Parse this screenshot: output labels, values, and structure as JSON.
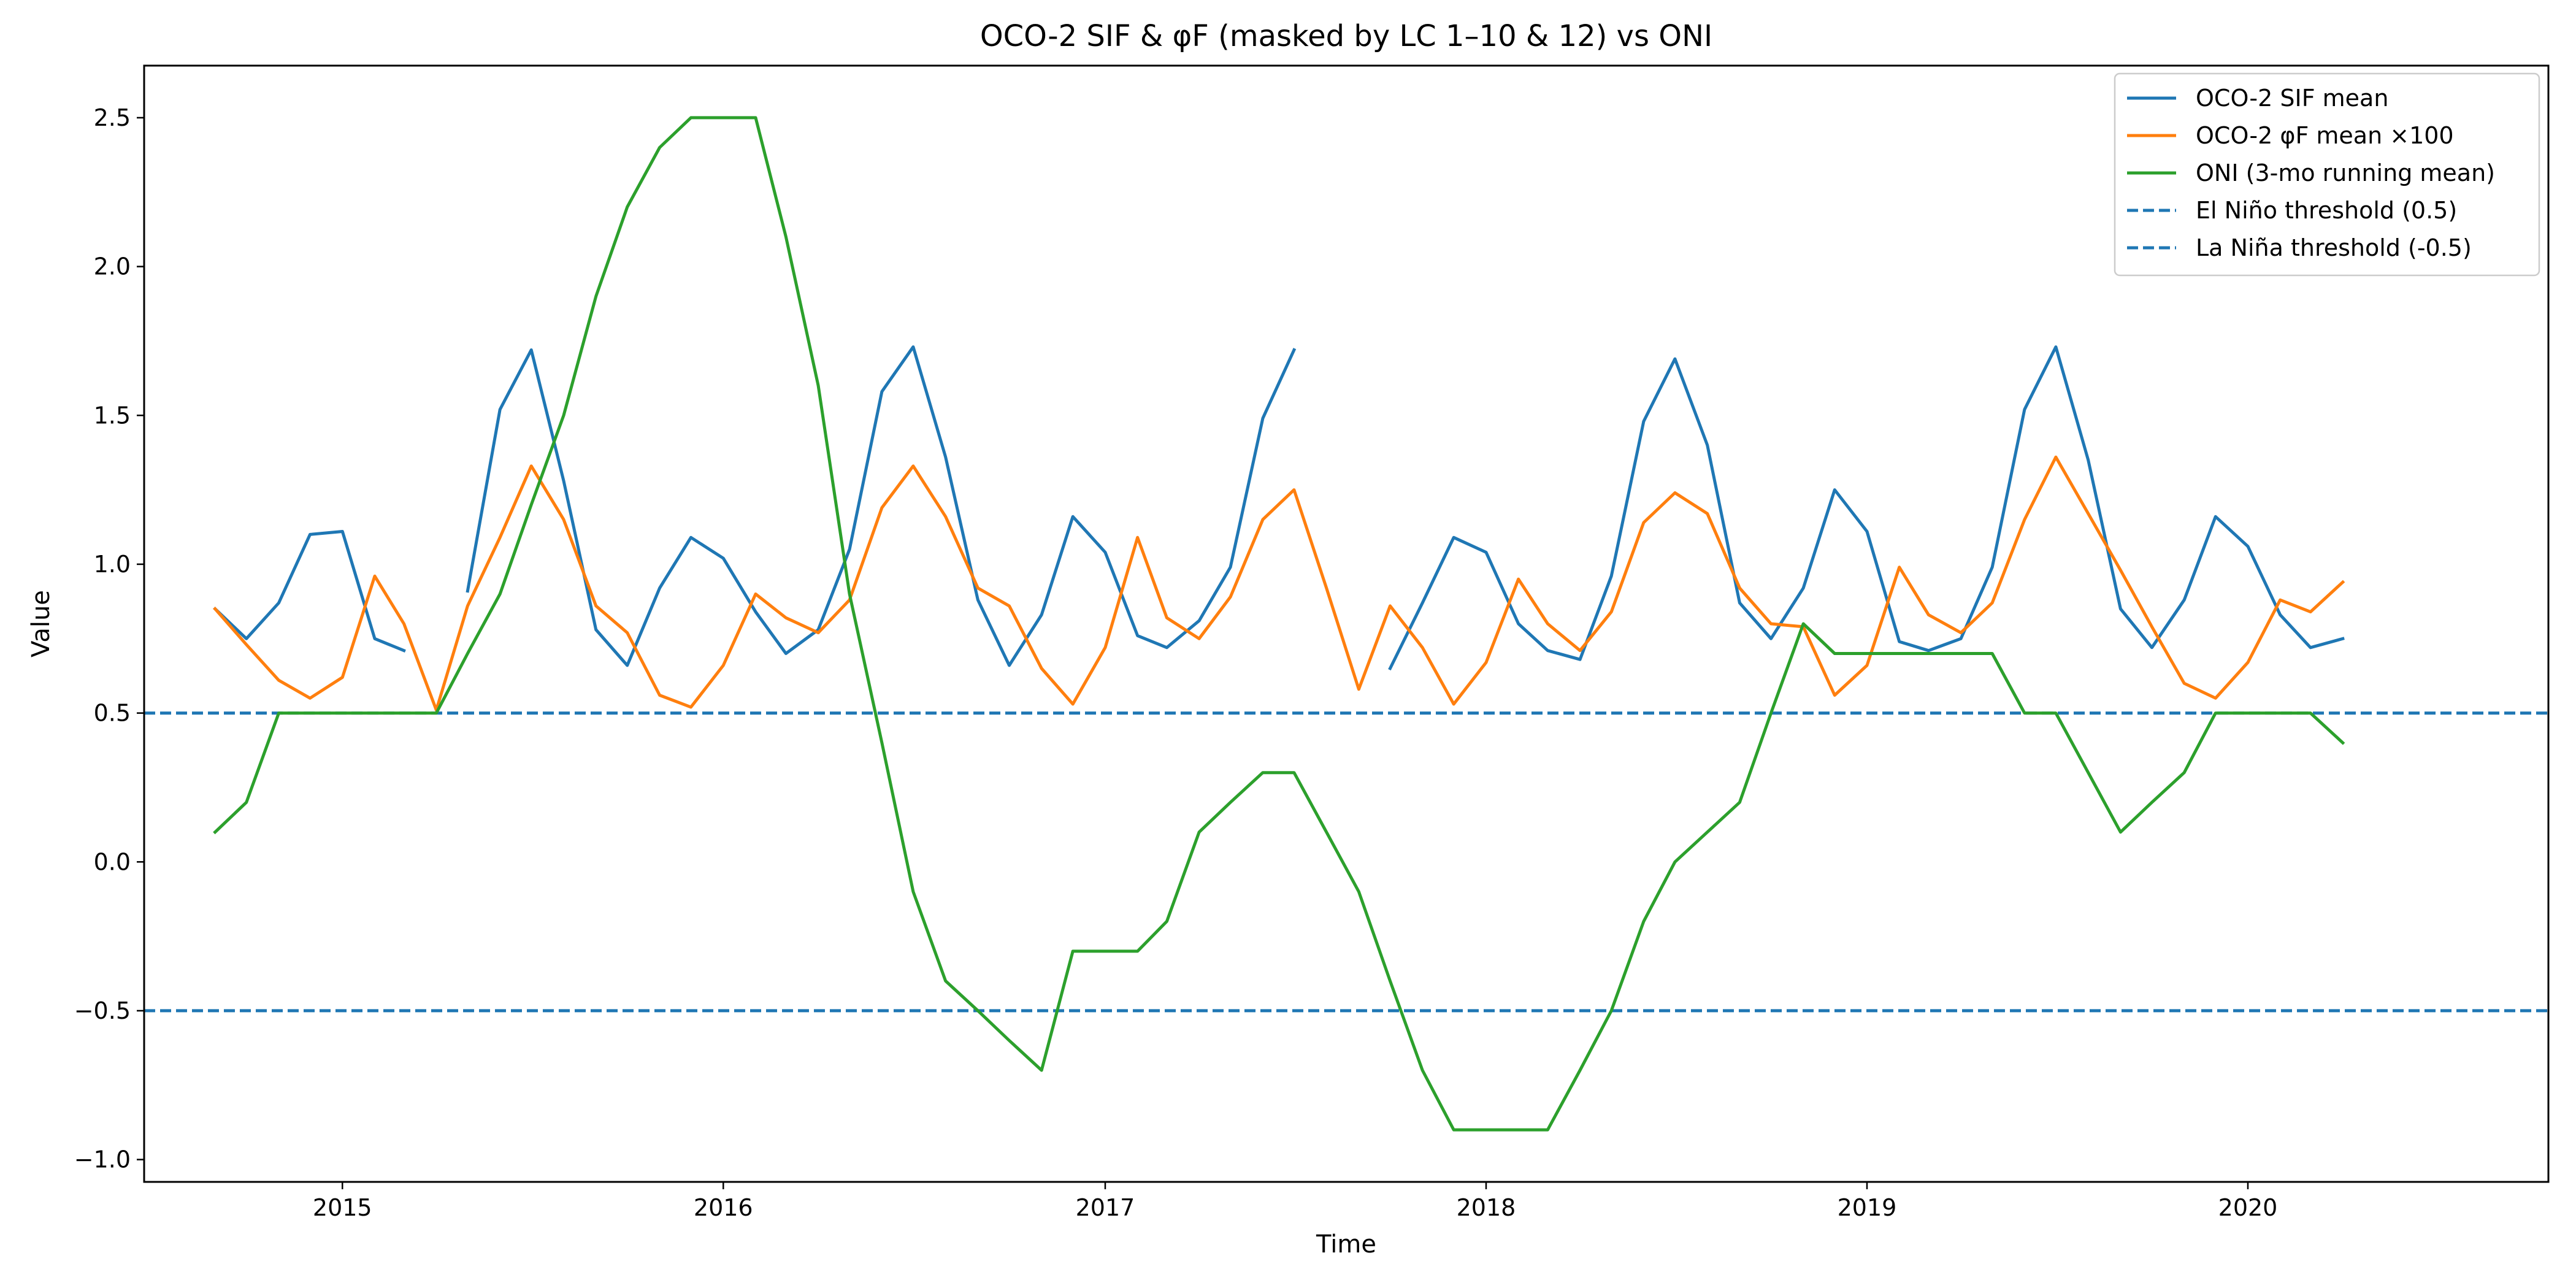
{
  "chart_data": {
    "type": "line",
    "title": "OCO-2 SIF & φF (masked by LC 1–10 & 12) vs ONI",
    "xlabel": "Time",
    "ylabel": "Value",
    "x_tick_labels": [
      "2015",
      "2016",
      "2017",
      "2018",
      "2019",
      "2020"
    ],
    "y_tick_labels": [
      "−1.0",
      "−0.5",
      "0.0",
      "0.5",
      "1.0",
      "1.5",
      "2.0",
      "2.5"
    ],
    "y_ticks": [
      -1.0,
      -0.5,
      0.0,
      0.5,
      1.0,
      1.5,
      2.0,
      2.5
    ],
    "xlim": [
      "2014-06-25",
      "2020-10-15"
    ],
    "ylim": [
      -1.075,
      2.675
    ],
    "grid": false,
    "legend_position": "upper right",
    "series": [
      {
        "name": "OCO-2 SIF mean",
        "color": "#1f77b4",
        "style": "solid",
        "points": [
          [
            "2014-09",
            0.85
          ],
          [
            "2014-10",
            0.75
          ],
          [
            "2014-11",
            0.87
          ],
          [
            "2014-12",
            1.1
          ],
          [
            "2015-01",
            1.11
          ],
          [
            "2015-02",
            0.75
          ],
          [
            "2015-03",
            0.71
          ],
          [
            "2015-04",
            null
          ],
          [
            "2015-05",
            0.91
          ],
          [
            "2015-06",
            1.52
          ],
          [
            "2015-07",
            1.72
          ],
          [
            "2015-08",
            1.28
          ],
          [
            "2015-09",
            0.78
          ],
          [
            "2015-10",
            0.66
          ],
          [
            "2015-11",
            0.92
          ],
          [
            "2015-12",
            1.09
          ],
          [
            "2016-01",
            1.02
          ],
          [
            "2016-02",
            0.84
          ],
          [
            "2016-03",
            0.7
          ],
          [
            "2016-04",
            0.78
          ],
          [
            "2016-05",
            1.05
          ],
          [
            "2016-06",
            1.58
          ],
          [
            "2016-07",
            1.73
          ],
          [
            "2016-08",
            1.36
          ],
          [
            "2016-09",
            0.88
          ],
          [
            "2016-10",
            0.66
          ],
          [
            "2016-11",
            0.83
          ],
          [
            "2016-12",
            1.16
          ],
          [
            "2017-01",
            1.04
          ],
          [
            "2017-02",
            0.76
          ],
          [
            "2017-03",
            0.72
          ],
          [
            "2017-04",
            0.81
          ],
          [
            "2017-05",
            0.99
          ],
          [
            "2017-06",
            1.49
          ],
          [
            "2017-07",
            1.72
          ],
          [
            "2017-08",
            null
          ],
          [
            "2017-09",
            null
          ],
          [
            "2017-10",
            0.65
          ],
          [
            "2017-11",
            0.87
          ],
          [
            "2017-12",
            1.09
          ],
          [
            "2018-01",
            1.04
          ],
          [
            "2018-02",
            0.8
          ],
          [
            "2018-03",
            0.71
          ],
          [
            "2018-04",
            0.68
          ],
          [
            "2018-05",
            0.96
          ],
          [
            "2018-06",
            1.48
          ],
          [
            "2018-07",
            1.69
          ],
          [
            "2018-08",
            1.4
          ],
          [
            "2018-09",
            0.87
          ],
          [
            "2018-10",
            0.75
          ],
          [
            "2018-11",
            0.92
          ],
          [
            "2018-12",
            1.25
          ],
          [
            "2019-01",
            1.11
          ],
          [
            "2019-02",
            0.74
          ],
          [
            "2019-03",
            0.71
          ],
          [
            "2019-04",
            0.75
          ],
          [
            "2019-05",
            0.99
          ],
          [
            "2019-06",
            1.52
          ],
          [
            "2019-07",
            1.73
          ],
          [
            "2019-08",
            1.35
          ],
          [
            "2019-09",
            0.85
          ],
          [
            "2019-10",
            0.72
          ],
          [
            "2019-11",
            0.88
          ],
          [
            "2019-12",
            1.16
          ],
          [
            "2020-01",
            1.06
          ],
          [
            "2020-02",
            0.83
          ],
          [
            "2020-03",
            0.72
          ],
          [
            "2020-04",
            0.75
          ]
        ]
      },
      {
        "name": "OCO-2 φF mean ×100",
        "color": "#ff7f0e",
        "style": "solid",
        "points": [
          [
            "2014-09",
            0.85
          ],
          [
            "2014-10",
            0.73
          ],
          [
            "2014-11",
            0.61
          ],
          [
            "2014-12",
            0.55
          ],
          [
            "2015-01",
            0.62
          ],
          [
            "2015-02",
            0.96
          ],
          [
            "2015-03",
            0.8
          ],
          [
            "2015-04",
            0.51
          ],
          [
            "2015-05",
            0.86
          ],
          [
            "2015-06",
            1.09
          ],
          [
            "2015-07",
            1.33
          ],
          [
            "2015-08",
            1.15
          ],
          [
            "2015-09",
            0.86
          ],
          [
            "2015-10",
            0.77
          ],
          [
            "2015-11",
            0.56
          ],
          [
            "2015-12",
            0.52
          ],
          [
            "2016-01",
            0.66
          ],
          [
            "2016-02",
            0.9
          ],
          [
            "2016-03",
            0.82
          ],
          [
            "2016-04",
            0.77
          ],
          [
            "2016-05",
            0.88
          ],
          [
            "2016-06",
            1.19
          ],
          [
            "2016-07",
            1.33
          ],
          [
            "2016-08",
            1.16
          ],
          [
            "2016-09",
            0.92
          ],
          [
            "2016-10",
            0.86
          ],
          [
            "2016-11",
            0.65
          ],
          [
            "2016-12",
            0.53
          ],
          [
            "2017-01",
            0.72
          ],
          [
            "2017-02",
            1.09
          ],
          [
            "2017-03",
            0.82
          ],
          [
            "2017-04",
            0.75
          ],
          [
            "2017-05",
            0.89
          ],
          [
            "2017-06",
            1.15
          ],
          [
            "2017-07",
            1.25
          ],
          [
            "2017-08",
            0.92
          ],
          [
            "2017-09",
            0.58
          ],
          [
            "2017-10",
            0.86
          ],
          [
            "2017-11",
            0.72
          ],
          [
            "2017-12",
            0.53
          ],
          [
            "2018-01",
            0.67
          ],
          [
            "2018-02",
            0.95
          ],
          [
            "2018-03",
            0.8
          ],
          [
            "2018-04",
            0.71
          ],
          [
            "2018-05",
            0.84
          ],
          [
            "2018-06",
            1.14
          ],
          [
            "2018-07",
            1.24
          ],
          [
            "2018-08",
            1.17
          ],
          [
            "2018-09",
            0.92
          ],
          [
            "2018-10",
            0.8
          ],
          [
            "2018-11",
            0.79
          ],
          [
            "2018-12",
            0.56
          ],
          [
            "2019-01",
            0.66
          ],
          [
            "2019-02",
            0.99
          ],
          [
            "2019-03",
            0.83
          ],
          [
            "2019-04",
            0.77
          ],
          [
            "2019-05",
            0.87
          ],
          [
            "2019-06",
            1.15
          ],
          [
            "2019-07",
            1.36
          ],
          [
            "2019-08",
            1.17
          ],
          [
            "2019-09",
            0.98
          ],
          [
            "2019-10",
            0.79
          ],
          [
            "2019-11",
            0.6
          ],
          [
            "2019-12",
            0.55
          ],
          [
            "2020-01",
            0.67
          ],
          [
            "2020-02",
            0.88
          ],
          [
            "2020-03",
            0.84
          ],
          [
            "2020-04",
            0.94
          ]
        ]
      },
      {
        "name": "ONI (3-mo running mean)",
        "color": "#2ca02c",
        "style": "solid",
        "points": [
          [
            "2014-09",
            0.1
          ],
          [
            "2014-10",
            0.2
          ],
          [
            "2014-11",
            0.5
          ],
          [
            "2014-12",
            0.5
          ],
          [
            "2015-01",
            0.5
          ],
          [
            "2015-02",
            0.5
          ],
          [
            "2015-03",
            0.5
          ],
          [
            "2015-04",
            0.5
          ],
          [
            "2015-05",
            0.7
          ],
          [
            "2015-06",
            0.9
          ],
          [
            "2015-07",
            1.2
          ],
          [
            "2015-08",
            1.5
          ],
          [
            "2015-09",
            1.9
          ],
          [
            "2015-10",
            2.2
          ],
          [
            "2015-11",
            2.4
          ],
          [
            "2015-12",
            2.5
          ],
          [
            "2016-01",
            2.5
          ],
          [
            "2016-02",
            2.5
          ],
          [
            "2016-03",
            2.1
          ],
          [
            "2016-04",
            1.6
          ],
          [
            "2016-05",
            0.9
          ],
          [
            "2016-06",
            0.4
          ],
          [
            "2016-07",
            -0.1
          ],
          [
            "2016-08",
            -0.4
          ],
          [
            "2016-09",
            -0.5
          ],
          [
            "2016-10",
            -0.6
          ],
          [
            "2016-11",
            -0.7
          ],
          [
            "2016-12",
            -0.3
          ],
          [
            "2017-01",
            -0.3
          ],
          [
            "2017-02",
            -0.3
          ],
          [
            "2017-03",
            -0.2
          ],
          [
            "2017-04",
            0.1
          ],
          [
            "2017-05",
            0.2
          ],
          [
            "2017-06",
            0.3
          ],
          [
            "2017-07",
            0.3
          ],
          [
            "2017-08",
            0.1
          ],
          [
            "2017-09",
            -0.1
          ],
          [
            "2017-10",
            -0.4
          ],
          [
            "2017-11",
            -0.7
          ],
          [
            "2017-12",
            -0.9
          ],
          [
            "2018-01",
            -0.9
          ],
          [
            "2018-02",
            -0.9
          ],
          [
            "2018-03",
            -0.9
          ],
          [
            "2018-04",
            -0.7
          ],
          [
            "2018-05",
            -0.5
          ],
          [
            "2018-06",
            -0.2
          ],
          [
            "2018-07",
            0.0
          ],
          [
            "2018-08",
            0.1
          ],
          [
            "2018-09",
            0.2
          ],
          [
            "2018-10",
            0.5
          ],
          [
            "2018-11",
            0.8
          ],
          [
            "2018-12",
            0.7
          ],
          [
            "2019-01",
            0.7
          ],
          [
            "2019-02",
            0.7
          ],
          [
            "2019-03",
            0.7
          ],
          [
            "2019-04",
            0.7
          ],
          [
            "2019-05",
            0.7
          ],
          [
            "2019-06",
            0.5
          ],
          [
            "2019-07",
            0.5
          ],
          [
            "2019-08",
            0.3
          ],
          [
            "2019-09",
            0.1
          ],
          [
            "2019-10",
            0.2
          ],
          [
            "2019-11",
            0.3
          ],
          [
            "2019-12",
            0.5
          ],
          [
            "2020-01",
            0.5
          ],
          [
            "2020-02",
            0.5
          ],
          [
            "2020-03",
            0.5
          ],
          [
            "2020-04",
            0.4
          ]
        ]
      }
    ],
    "reference_lines": [
      {
        "name": "El Niño threshold (0.5)",
        "y": 0.5,
        "color": "#1f77b4",
        "style": "dashed"
      },
      {
        "name": "La Niña threshold (-0.5)",
        "y": -0.5,
        "color": "#1f77b4",
        "style": "dashed"
      }
    ]
  }
}
